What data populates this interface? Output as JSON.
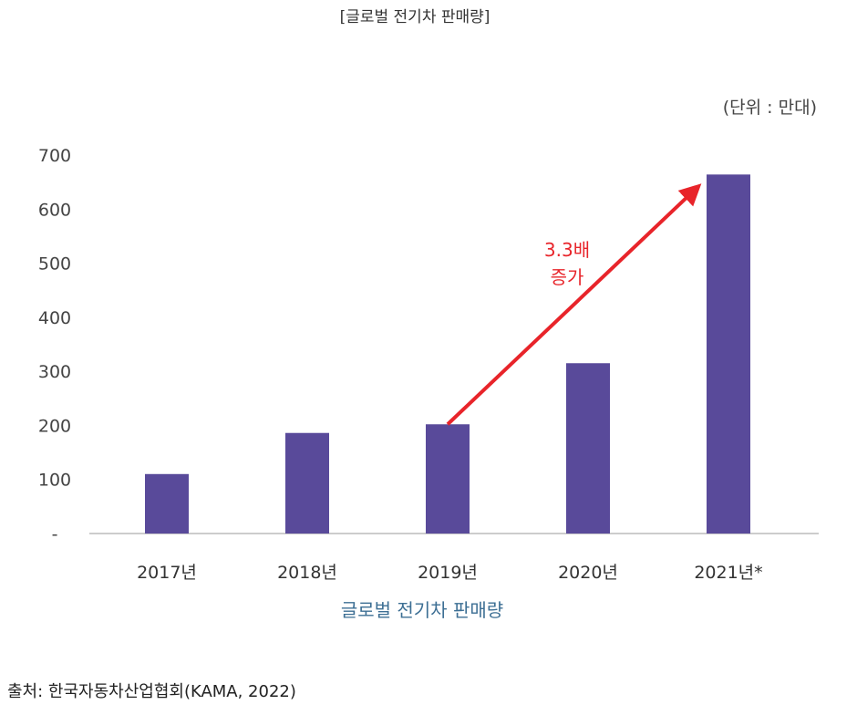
{
  "header": {
    "title": "[글로벌 전기차 판매량]"
  },
  "unit_label": "(단위 : 만대)",
  "annotation": {
    "line1": "3.3배",
    "line2": "증가"
  },
  "source": "출처: 한국자동차산업협회(KAMA, 2022)",
  "colors": {
    "bar": "#594a9a",
    "arrow": "#e8242a",
    "axis": "#bbbbbb",
    "caption": "#3d6f94"
  },
  "chart_data": {
    "type": "bar",
    "title": "[글로벌 전기차 판매량]",
    "xlabel": "글로벌 전기차 판매량",
    "ylabel": "",
    "categories": [
      "2017년",
      "2018년",
      "2019년",
      "2020년",
      "2021년*"
    ],
    "values": [
      110,
      186,
      202,
      315,
      664
    ],
    "ylim": [
      0,
      700
    ],
    "yticks": [
      0,
      100,
      200,
      300,
      400,
      500,
      600,
      700
    ],
    "ytick_labels": [
      "-",
      "100",
      "200",
      "300",
      "400",
      "500",
      "600",
      "700"
    ],
    "grid": false
  }
}
